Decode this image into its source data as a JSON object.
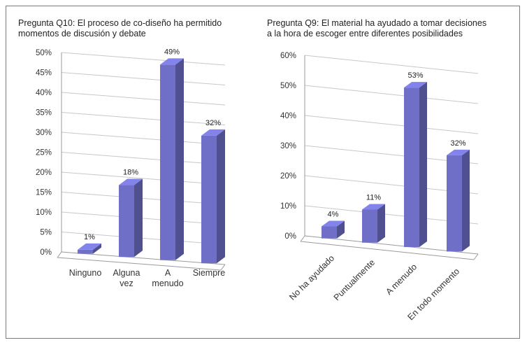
{
  "chart_data": [
    {
      "type": "bar",
      "title": [
        "Pregunta Q10: El proceso de co-diseño ha permitido",
        "momentos de discusión y debate"
      ],
      "categories": [
        [
          "Ninguno"
        ],
        [
          "Alguna",
          "vez"
        ],
        [
          "A",
          "menudo"
        ],
        [
          "Siempre"
        ]
      ],
      "values": [
        1,
        18,
        49,
        32
      ],
      "data_labels": [
        "1%",
        "18%",
        "49%",
        "32%"
      ],
      "y_ticks": [
        "0%",
        "5%",
        "10%",
        "15%",
        "20%",
        "25%",
        "30%",
        "35%",
        "40%",
        "45%",
        "50%"
      ],
      "ylim": [
        0,
        50
      ],
      "grid": true,
      "bar_color": "#6f6fc8"
    },
    {
      "type": "bar",
      "title": [
        "Pregunta Q9: El material ha ayudado a tomar decisiones",
        "a la hora de escoger entre diferentes posibilidades"
      ],
      "categories": [
        "No ha ayudado",
        "Puntualmente",
        "A menudo",
        "En todo momento"
      ],
      "values": [
        4,
        11,
        53,
        32
      ],
      "data_labels": [
        "4%",
        "11%",
        "53%",
        "32%"
      ],
      "y_ticks": [
        "0%",
        "10%",
        "20%",
        "30%",
        "40%",
        "50%",
        "60%"
      ],
      "ylim": [
        0,
        60
      ],
      "grid": true,
      "bar_color": "#6f6fc8"
    }
  ]
}
